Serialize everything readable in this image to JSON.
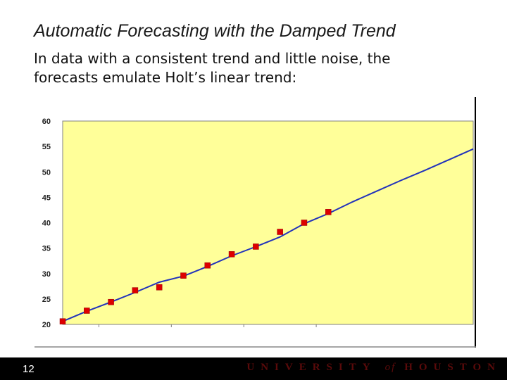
{
  "slide": {
    "title": "Automatic Forecasting with the Damped Trend",
    "subtitle_line1": "In data with a consistent trend and little noise, the",
    "subtitle_line2": "forecasts emulate Holt’s linear trend:",
    "page_number": "12",
    "footer_left": "UNIVERSITY",
    "footer_of": "of",
    "footer_right": "HOUSTON"
  },
  "colors": {
    "plot_background": "#ffff99",
    "forecast_line": "#2233bb",
    "data_marker": "#dd0000",
    "footer_background": "#000000",
    "footer_text": "#5a0a0a"
  },
  "chart_data": {
    "type": "line",
    "title": "",
    "xlabel": "",
    "ylabel": "",
    "ylim": [
      20,
      60
    ],
    "yticks": [
      20,
      25,
      30,
      35,
      40,
      45,
      50,
      55,
      60
    ],
    "xlim": [
      1,
      18
    ],
    "grid": false,
    "legend": "none",
    "series": [
      {
        "kind": "markers",
        "x": [
          1,
          2,
          3,
          4,
          5,
          6,
          7,
          8,
          9,
          10,
          11,
          12
        ],
        "values": [
          20.6,
          22.7,
          24.4,
          26.7,
          27.3,
          29.6,
          31.6,
          33.8,
          35.3,
          38.2,
          40.0,
          42.1
        ]
      },
      {
        "kind": "line",
        "x": [
          1,
          2,
          3,
          4,
          5,
          6,
          7,
          8,
          9,
          10,
          11,
          12,
          13,
          14,
          15,
          16,
          17,
          18
        ],
        "values": [
          20.6,
          22.6,
          24.4,
          26.3,
          28.3,
          29.5,
          31.4,
          33.5,
          35.3,
          37.2,
          39.8,
          41.8,
          44.1,
          46.2,
          48.3,
          50.3,
          52.4,
          54.5
        ]
      }
    ]
  }
}
